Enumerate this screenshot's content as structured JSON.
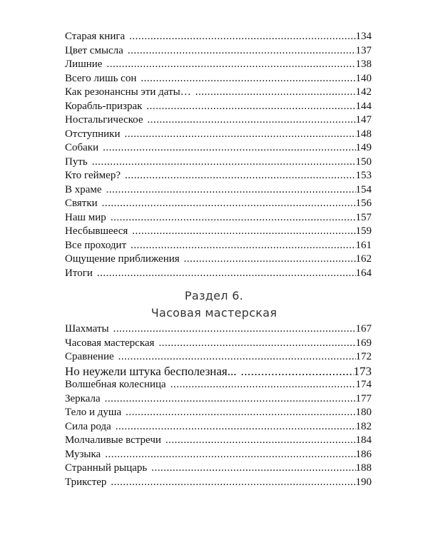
{
  "section5_entries": [
    {
      "title": "Старая книга",
      "page": "134"
    },
    {
      "title": "Цвет смысла",
      "page": "137"
    },
    {
      "title": "Лишние",
      "page": "138"
    },
    {
      "title": "Всего лишь сон",
      "page": "140"
    },
    {
      "title": "Как резонансны эти даты…",
      "page": "142"
    },
    {
      "title": "Корабль-призрак",
      "page": "144"
    },
    {
      "title": "Ностальгическое",
      "page": "147"
    },
    {
      "title": "Отступники",
      "page": "148"
    },
    {
      "title": "Собаки",
      "page": "149"
    },
    {
      "title": "Путь",
      "page": "150"
    },
    {
      "title": "Кто геймер?",
      "page": "153"
    },
    {
      "title": "В храме",
      "page": "154"
    },
    {
      "title": "Святки",
      "page": "156"
    },
    {
      "title": "Наш мир",
      "page": "157"
    },
    {
      "title": "Несбывшееся",
      "page": "159"
    },
    {
      "title": "Все проходит",
      "page": "161"
    },
    {
      "title": "Ощущение приближения",
      "page": "162"
    },
    {
      "title": "Итоги",
      "page": "164"
    }
  ],
  "section6": {
    "label": "Раздел 6.",
    "title": "Часовая мастерская",
    "entries": [
      {
        "title": "Шахматы",
        "page": "167"
      },
      {
        "title": "Часовая мастерская",
        "page": "169"
      },
      {
        "title": "Сравнение",
        "page": "172"
      },
      {
        "title": "Но неужели штука бесполезная...",
        "page": "173"
      },
      {
        "title": "Волшебная колесница",
        "page": "174"
      },
      {
        "title": "Зеркала",
        "page": "177"
      },
      {
        "title": "Тело и душа",
        "page": "180"
      },
      {
        "title": "Сила рода",
        "page": "182"
      },
      {
        "title": "Молчаливые встречи",
        "page": "184"
      },
      {
        "title": "Музыка",
        "page": "186"
      },
      {
        "title": "Странный рыцарь",
        "page": "188"
      },
      {
        "title": "Трикстер",
        "page": "190"
      }
    ]
  }
}
